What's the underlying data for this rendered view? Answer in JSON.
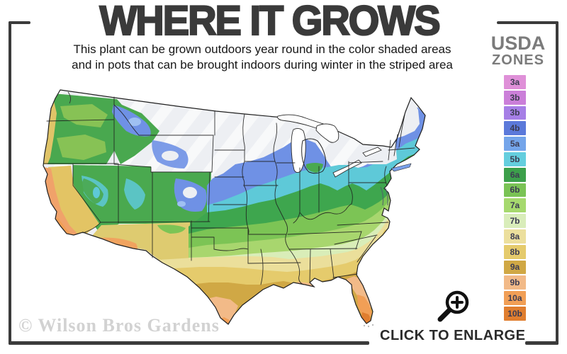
{
  "header": {
    "title": "WHERE IT GROWS",
    "subtitle_line1": "This plant can be grown outdoors year round in the color shaded areas",
    "subtitle_line2": "and in pots that can be brought indoors during winter in the striped area"
  },
  "legend": {
    "title_line1": "USDA",
    "title_line2": "ZONES",
    "zones": [
      {
        "label": "3a",
        "color": "#df90d8"
      },
      {
        "label": "3b",
        "color": "#cb7fd9"
      },
      {
        "label": "3b",
        "color": "#a67fe6"
      },
      {
        "label": "4b",
        "color": "#5b79da"
      },
      {
        "label": "5a",
        "color": "#74a5ea"
      },
      {
        "label": "5b",
        "color": "#64cede"
      },
      {
        "label": "6a",
        "color": "#3ca04b"
      },
      {
        "label": "6b",
        "color": "#7ac355"
      },
      {
        "label": "7a",
        "color": "#a6d96e"
      },
      {
        "label": "7b",
        "color": "#d9edba"
      },
      {
        "label": "8a",
        "color": "#ecdf9d"
      },
      {
        "label": "8b",
        "color": "#e5cb6c"
      },
      {
        "label": "9a",
        "color": "#d0a845"
      },
      {
        "label": "9b",
        "color": "#f2ba88"
      },
      {
        "label": "10a",
        "color": "#f19f56"
      },
      {
        "label": "10b",
        "color": "#e07e2f"
      }
    ]
  },
  "map": {
    "region": "Continental United States",
    "style": "USDA plant hardiness zone choropleth",
    "striped_area_meaning": "striped (white) northern area: grow in pots brought indoors during winter",
    "shaded_area_meaning": "color shaded areas: grows outdoors year round"
  },
  "watermark": "© Wilson Bros Gardens",
  "footer": {
    "enlarge_label": "CLICK TO ENLARGE"
  },
  "colors": {
    "frame": "#3b3b3b",
    "title": "#3a3a3a",
    "legend_title": "#7b7b7b",
    "watermark": "#d2d2d2",
    "map_cold_base": "#edeff3"
  }
}
